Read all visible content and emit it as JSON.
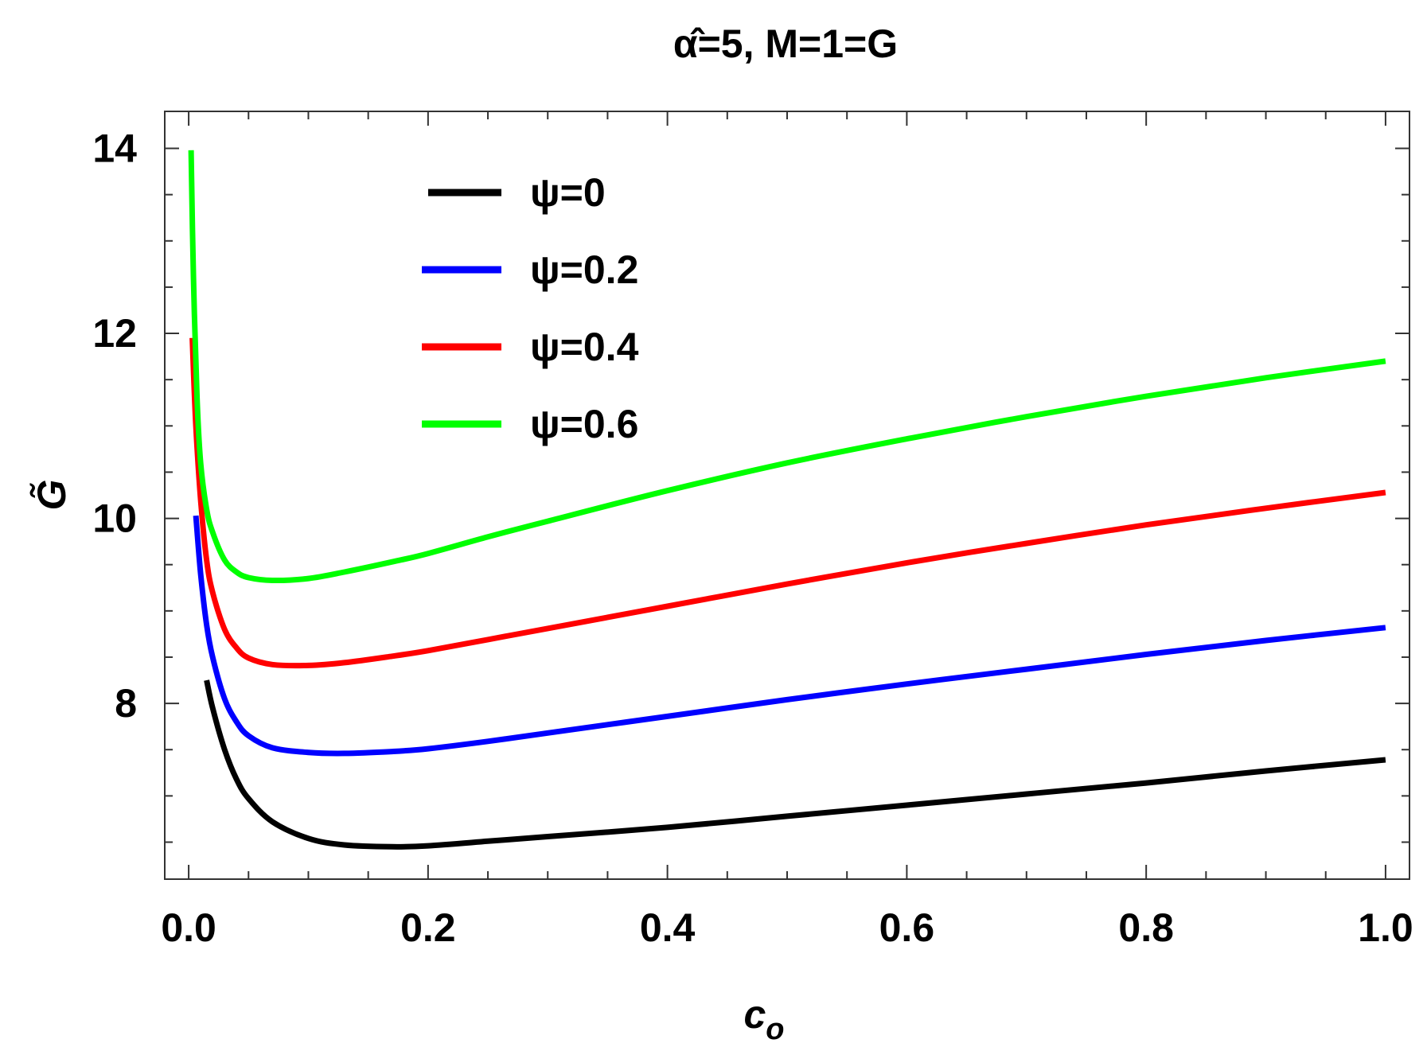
{
  "chart_data": {
    "type": "line",
    "title": "α̂=5, M=1=G",
    "xlabel": "c",
    "xlabel_sub": "o",
    "ylabel": "G̃",
    "xlim": [
      -0.02,
      1.02
    ],
    "ylim": [
      6.1,
      14.4
    ],
    "xticks": [
      0.0,
      0.2,
      0.4,
      0.6,
      0.8,
      1.0
    ],
    "xtick_labels": [
      "0.0",
      "0.2",
      "0.4",
      "0.6",
      "0.8",
      "1.0"
    ],
    "yticks": [
      8,
      10,
      12,
      14
    ],
    "ytick_labels": [
      "8",
      "10",
      "12",
      "14"
    ],
    "grid": false,
    "legend_position": "top-left",
    "series": [
      {
        "name": "ψ=0",
        "color": "#000000",
        "x": [
          0.015,
          0.02,
          0.03,
          0.04,
          0.05,
          0.07,
          0.1,
          0.13,
          0.17,
          0.2,
          0.25,
          0.3,
          0.4,
          0.5,
          0.6,
          0.7,
          0.8,
          0.9,
          1.0
        ],
        "y": [
          8.25,
          7.95,
          7.5,
          7.18,
          6.97,
          6.72,
          6.54,
          6.47,
          6.45,
          6.46,
          6.51,
          6.56,
          6.66,
          6.78,
          6.9,
          7.02,
          7.14,
          7.27,
          7.39
        ]
      },
      {
        "name": "ψ=0.2",
        "color": "#0000ff",
        "x": [
          0.006,
          0.01,
          0.015,
          0.02,
          0.03,
          0.04,
          0.05,
          0.07,
          0.1,
          0.13,
          0.17,
          0.2,
          0.25,
          0.3,
          0.4,
          0.5,
          0.6,
          0.7,
          0.8,
          0.9,
          1.0
        ],
        "y": [
          10.03,
          9.4,
          8.85,
          8.5,
          8.05,
          7.8,
          7.65,
          7.52,
          7.47,
          7.46,
          7.48,
          7.51,
          7.59,
          7.68,
          7.86,
          8.04,
          8.21,
          8.37,
          8.53,
          8.68,
          8.82
        ]
      },
      {
        "name": "ψ=0.4",
        "color": "#ff0000",
        "x": [
          0.003,
          0.006,
          0.01,
          0.015,
          0.02,
          0.03,
          0.04,
          0.05,
          0.07,
          0.1,
          0.13,
          0.17,
          0.2,
          0.25,
          0.3,
          0.4,
          0.5,
          0.6,
          0.7,
          0.8,
          0.9,
          1.0
        ],
        "y": [
          11.95,
          11.0,
          10.2,
          9.55,
          9.2,
          8.8,
          8.6,
          8.49,
          8.42,
          8.41,
          8.44,
          8.51,
          8.57,
          8.69,
          8.81,
          9.05,
          9.29,
          9.52,
          9.73,
          9.93,
          10.11,
          10.28
        ]
      },
      {
        "name": "ψ=0.6",
        "color": "#00ff00",
        "x": [
          0.002,
          0.004,
          0.007,
          0.01,
          0.015,
          0.02,
          0.03,
          0.04,
          0.05,
          0.07,
          0.1,
          0.13,
          0.17,
          0.2,
          0.25,
          0.3,
          0.4,
          0.5,
          0.6,
          0.7,
          0.8,
          0.9,
          1.0
        ],
        "y": [
          13.98,
          12.6,
          11.3,
          10.6,
          10.1,
          9.85,
          9.55,
          9.42,
          9.36,
          9.33,
          9.35,
          9.42,
          9.53,
          9.62,
          9.8,
          9.97,
          10.3,
          10.6,
          10.86,
          11.1,
          11.32,
          11.52,
          11.7
        ]
      }
    ]
  }
}
